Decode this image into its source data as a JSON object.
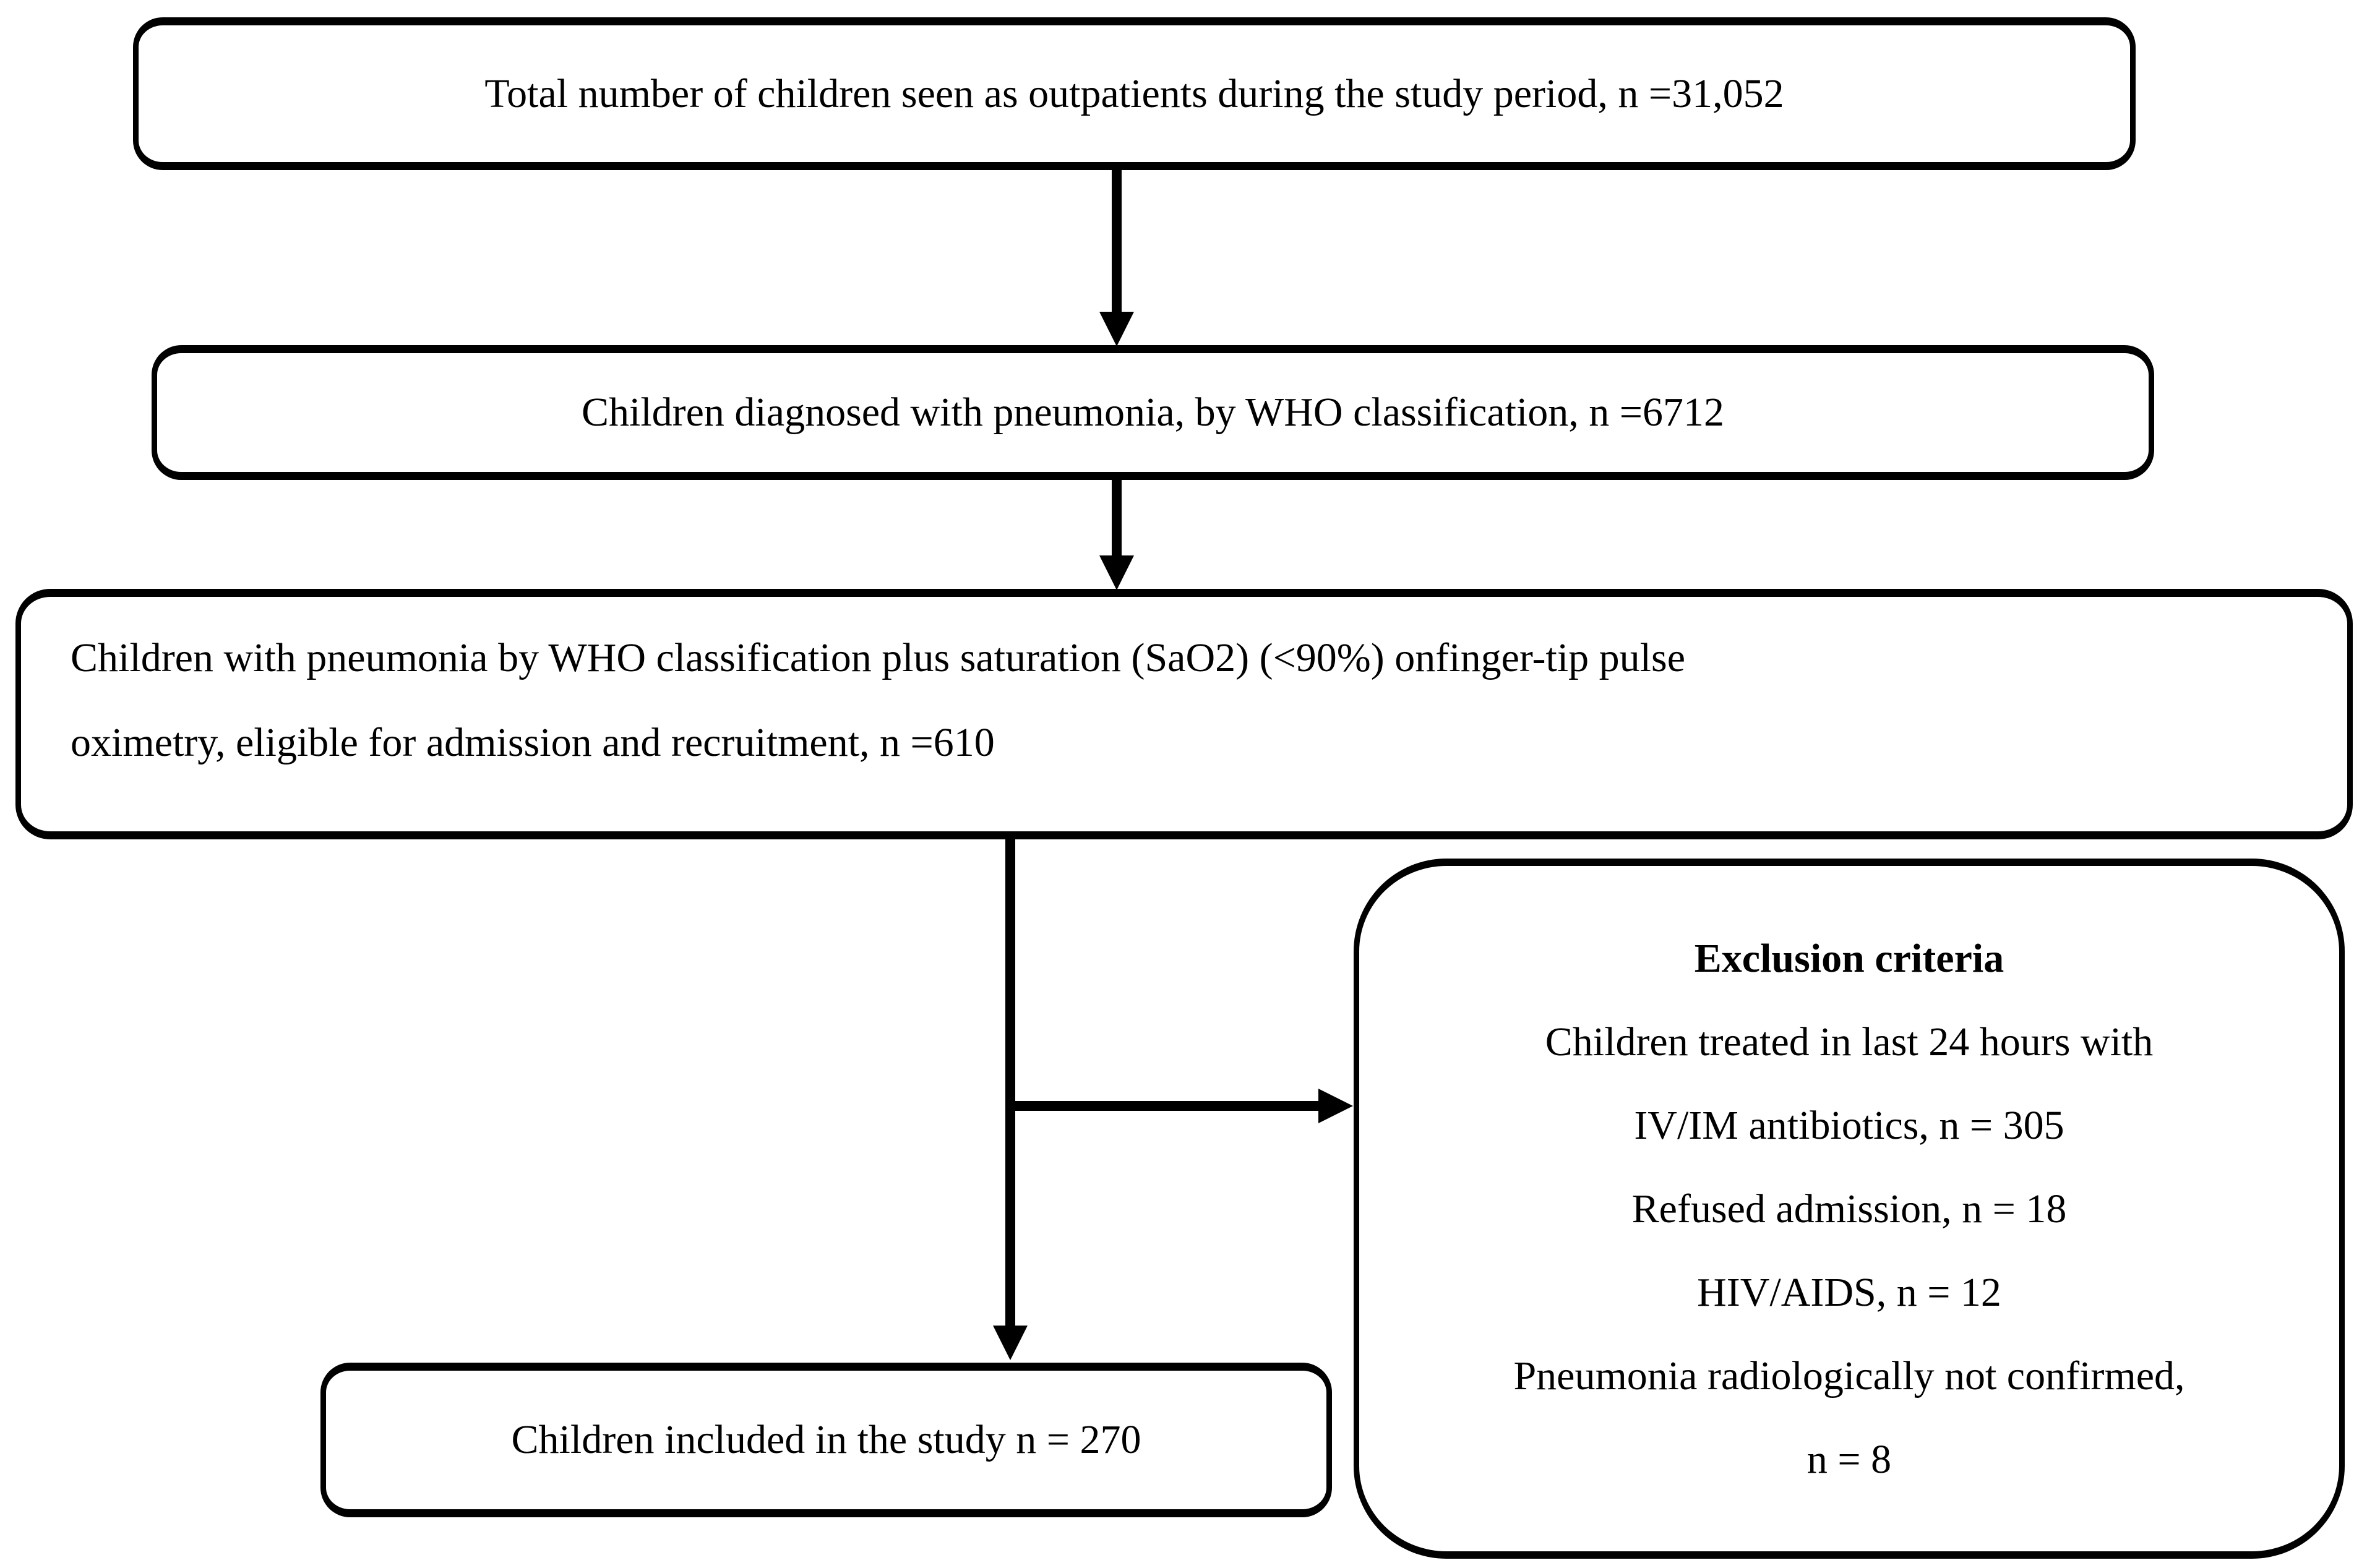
{
  "diagram": {
    "background_color": "#ffffff",
    "line_color": "#000000",
    "boxes": {
      "total": {
        "text": "Total number of children seen as outpatients during the study period, n =31,052"
      },
      "who_pneumonia": {
        "text": "Children diagnosed with pneumonia, by WHO classification, n =6712"
      },
      "eligible": {
        "lines": [
          "Children with pneumonia by WHO classification plus saturation (SaO2) (<90%) onfinger-tip pulse",
          "oximetry, eligible for admission and recruitment, n =610"
        ]
      },
      "included": {
        "text": "Children included in the study n = 270"
      },
      "exclusion": {
        "title": "Exclusion criteria",
        "lines": [
          "Children treated in last 24 hours with",
          "IV/IM antibiotics, n = 305",
          "Refused admission, n = 18",
          "HIV/AIDS, n = 12",
          "Pneumonia radiologically not confirmed,",
          "n = 8"
        ]
      }
    }
  }
}
